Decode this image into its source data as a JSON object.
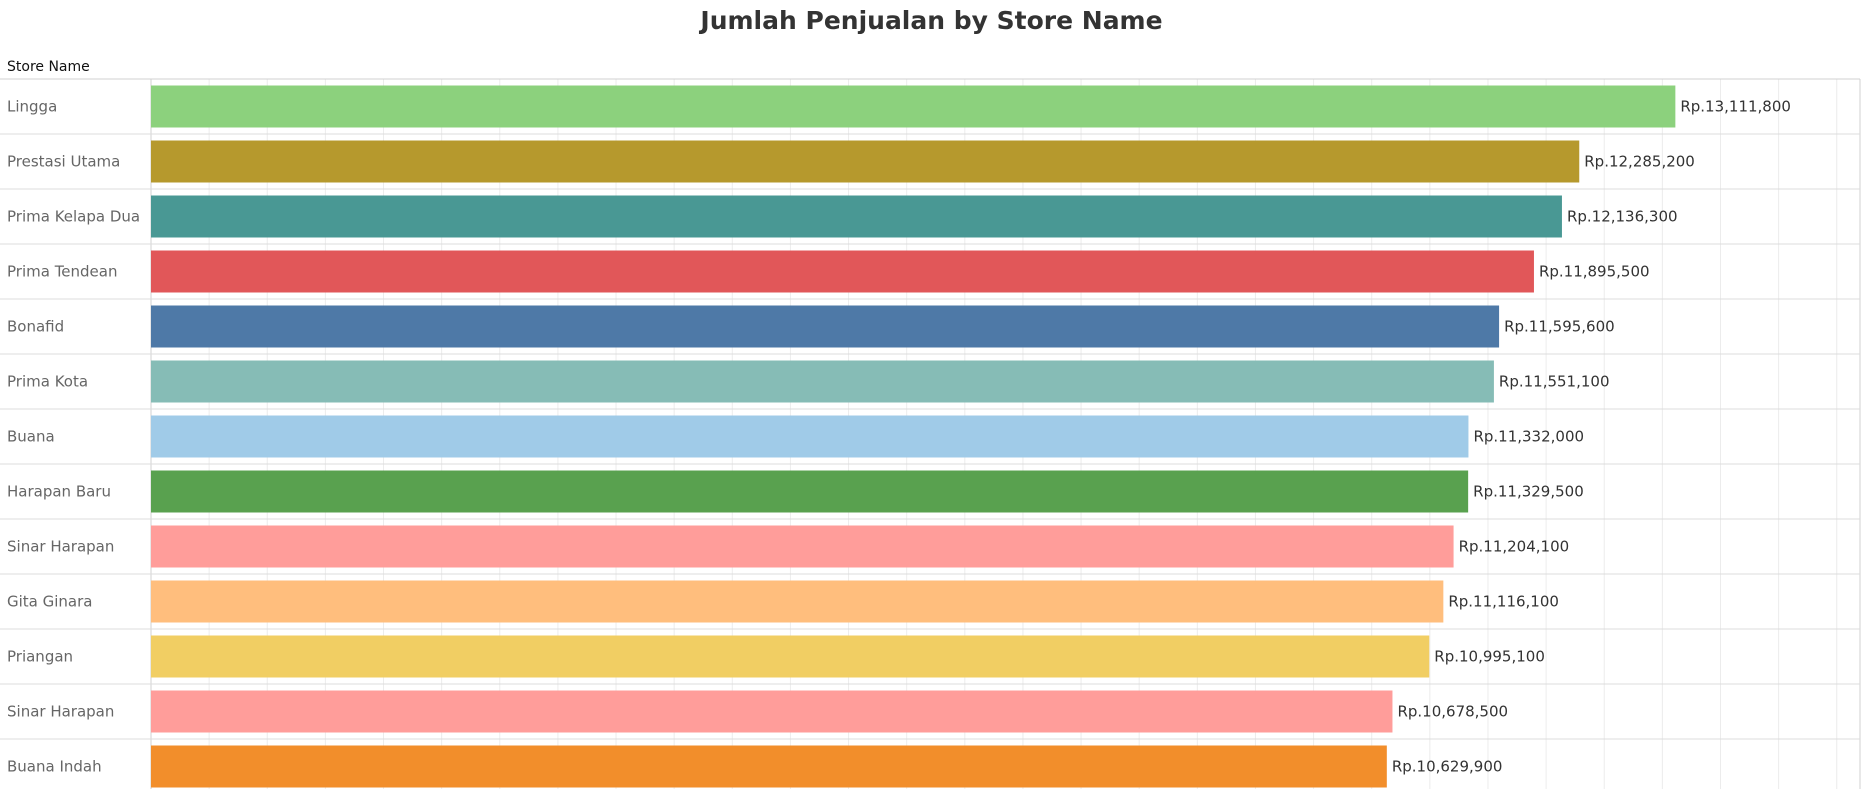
{
  "chart_data": {
    "type": "bar",
    "orientation": "horizontal",
    "title": "Jumlah Penjualan by Store Name",
    "row_header": "Store Name",
    "value_prefix": "Rp.",
    "xlim": [
      0,
      14700000
    ],
    "grid": true,
    "categories": [
      "Lingga",
      "Prestasi Utama",
      "Prima Kelapa Dua",
      "Prima Tendean",
      "Bonafid",
      "Prima Kota",
      "Buana",
      "Harapan Baru",
      "Sinar Harapan",
      "Gita Ginara",
      "Priangan",
      "Sinar Harapan",
      "Buana Indah"
    ],
    "values": [
      13111800,
      12285200,
      12136300,
      11895500,
      11595600,
      11551100,
      11332000,
      11329500,
      11204100,
      11116100,
      10995100,
      10678500,
      10629900
    ],
    "labels": [
      "Rp.13,111,800",
      "Rp.12,285,200",
      "Rp.12,136,300",
      "Rp.11,895,500",
      "Rp.11,595,600",
      "Rp.11,551,100",
      "Rp.11,332,000",
      "Rp.11,329,500",
      "Rp.11,204,100",
      "Rp.11,116,100",
      "Rp.10,995,100",
      "Rp.10,678,500",
      "Rp.10,629,900"
    ],
    "colors": [
      "#8cd17d",
      "#b6992d",
      "#499894",
      "#e15759",
      "#4e79a7",
      "#86bcb6",
      "#a0cbe8",
      "#59a14f",
      "#ff9d9a",
      "#ffbe7d",
      "#f1ce63",
      "#ff9d9a",
      "#f28e2b"
    ]
  }
}
